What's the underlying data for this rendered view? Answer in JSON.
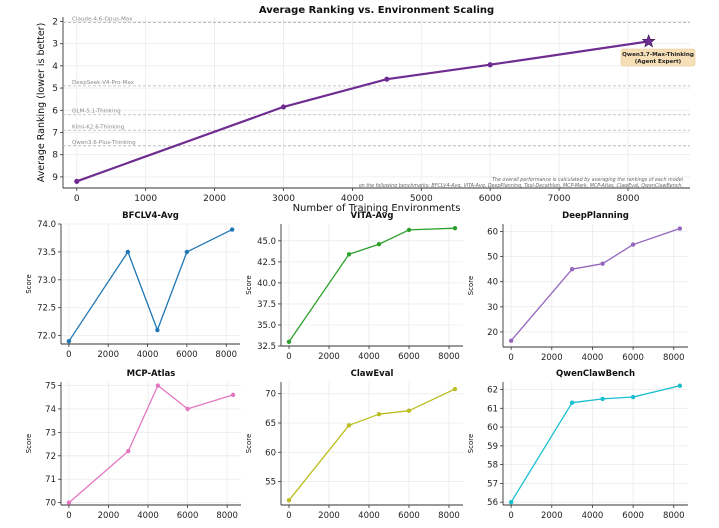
{
  "chart_data": [
    {
      "id": "main",
      "type": "line",
      "title": "Average Ranking vs. Environment Scaling",
      "xlabel": "Number of Training Environments",
      "ylabel": "Average Ranking (lower is better)",
      "x": [
        0,
        3000,
        4500,
        6000,
        8300
      ],
      "y": [
        9.2,
        5.85,
        4.6,
        3.95,
        2.9
      ],
      "xlim": [
        -200,
        8900
      ],
      "ylim": [
        9.5,
        1.8
      ],
      "y_inverted": true,
      "xticks": [
        0,
        1000,
        2000,
        3000,
        4000,
        5000,
        6000,
        7000,
        8000
      ],
      "yticks": [
        2,
        3,
        4,
        5,
        6,
        7,
        8,
        9
      ],
      "grid": true,
      "color": "#6f2c91",
      "highlight": {
        "label_line1": "Qwen3.7-Max-Thinking",
        "label_line2": "(Agent Expert)",
        "x": 8300,
        "y": 2.9
      },
      "reference_lines": [
        {
          "label": "Claude-4.6-Opus-Max",
          "y": 2.05
        },
        {
          "label": "DeepSeek-V4-Pro-Max",
          "y": 4.9
        },
        {
          "label": "GLM-5.1-Thinking",
          "y": 6.2
        },
        {
          "label": "Kimi-K2.6-Thinking",
          "y": 6.9
        },
        {
          "label": "Qwen3.6-Plus-Thinking",
          "y": 7.6
        }
      ],
      "footnote_line1": "The overall performance is calculated by averaging the rankings of each model",
      "footnote_line2": "on the following benchmarks: BFCLV4-Avg, VITA-Avg, DeepPlanning, Tool-Decathlon, MCP-Mark, MCP-Atlas, ClawEval, QwenClawBench."
    },
    {
      "id": "bfclv4",
      "type": "line",
      "title": "BFCLV4-Avg",
      "ylabel": "Score",
      "x": [
        0,
        3000,
        4500,
        6000,
        8300
      ],
      "y": [
        71.9,
        73.5,
        72.1,
        73.5,
        73.9
      ],
      "xlim": [
        -400,
        8700
      ],
      "ylim": [
        71.85,
        74.0
      ],
      "xticks": [
        0,
        2000,
        4000,
        6000,
        8000
      ],
      "yticks": [
        72.0,
        72.5,
        73.0,
        73.5,
        74.0
      ],
      "ytick_decimals": 1,
      "color": "#1f77b4"
    },
    {
      "id": "vita",
      "type": "line",
      "title": "VITA-Avg",
      "ylabel": "Score",
      "x": [
        0,
        3000,
        4500,
        6000,
        8300
      ],
      "y": [
        33.0,
        43.4,
        44.6,
        46.3,
        46.5
      ],
      "xlim": [
        -400,
        8700
      ],
      "ylim": [
        32.5,
        47.0
      ],
      "xticks": [
        0,
        2000,
        4000,
        6000,
        8000
      ],
      "yticks": [
        32.5,
        35.0,
        37.5,
        40.0,
        42.5,
        45.0
      ],
      "ytick_decimals": 1,
      "color": "#2ca02c"
    },
    {
      "id": "deepplanning",
      "type": "line",
      "title": "DeepPlanning",
      "ylabel": "Score",
      "x": [
        0,
        3000,
        4500,
        6000,
        8300
      ],
      "y": [
        16.5,
        45.0,
        47.2,
        54.8,
        61.2
      ],
      "xlim": [
        -400,
        8700
      ],
      "ylim": [
        14.0,
        63.0
      ],
      "xticks": [
        0,
        2000,
        4000,
        6000,
        8000
      ],
      "yticks": [
        20,
        30,
        40,
        50,
        60
      ],
      "ytick_decimals": 0,
      "color": "#9467bd"
    },
    {
      "id": "mcpatlas",
      "type": "line",
      "title": "MCP-Atlas",
      "ylabel": "Score",
      "x": [
        0,
        3000,
        4500,
        6000,
        8300
      ],
      "y": [
        70.0,
        72.2,
        75.0,
        74.0,
        74.6
      ],
      "xlim": [
        -400,
        8700
      ],
      "ylim": [
        69.9,
        75.15
      ],
      "xticks": [
        0,
        2000,
        4000,
        6000,
        8000
      ],
      "yticks": [
        70,
        71,
        72,
        73,
        74,
        75
      ],
      "ytick_decimals": 0,
      "color": "#e377c2"
    },
    {
      "id": "claweval",
      "type": "line",
      "title": "ClawEval",
      "ylabel": "Score",
      "x": [
        0,
        3000,
        4500,
        6000,
        8300
      ],
      "y": [
        51.8,
        64.6,
        66.5,
        67.1,
        70.8
      ],
      "xlim": [
        -400,
        8700
      ],
      "ylim": [
        51.0,
        72.0
      ],
      "xticks": [
        0,
        2000,
        4000,
        6000,
        8000
      ],
      "yticks": [
        55,
        60,
        65,
        70
      ],
      "ytick_decimals": 0,
      "color": "#bcbd22"
    },
    {
      "id": "qwenclawbench",
      "type": "line",
      "title": "QwenClawBench",
      "ylabel": "Score",
      "x": [
        0,
        3000,
        4500,
        6000,
        8300
      ],
      "y": [
        56.0,
        61.3,
        61.5,
        61.6,
        62.2
      ],
      "xlim": [
        -400,
        8700
      ],
      "ylim": [
        55.85,
        62.4
      ],
      "xticks": [
        0,
        2000,
        4000,
        6000,
        8000
      ],
      "yticks": [
        56,
        57,
        58,
        59,
        60,
        61,
        62
      ],
      "ytick_decimals": 0,
      "color": "#17becf"
    }
  ]
}
